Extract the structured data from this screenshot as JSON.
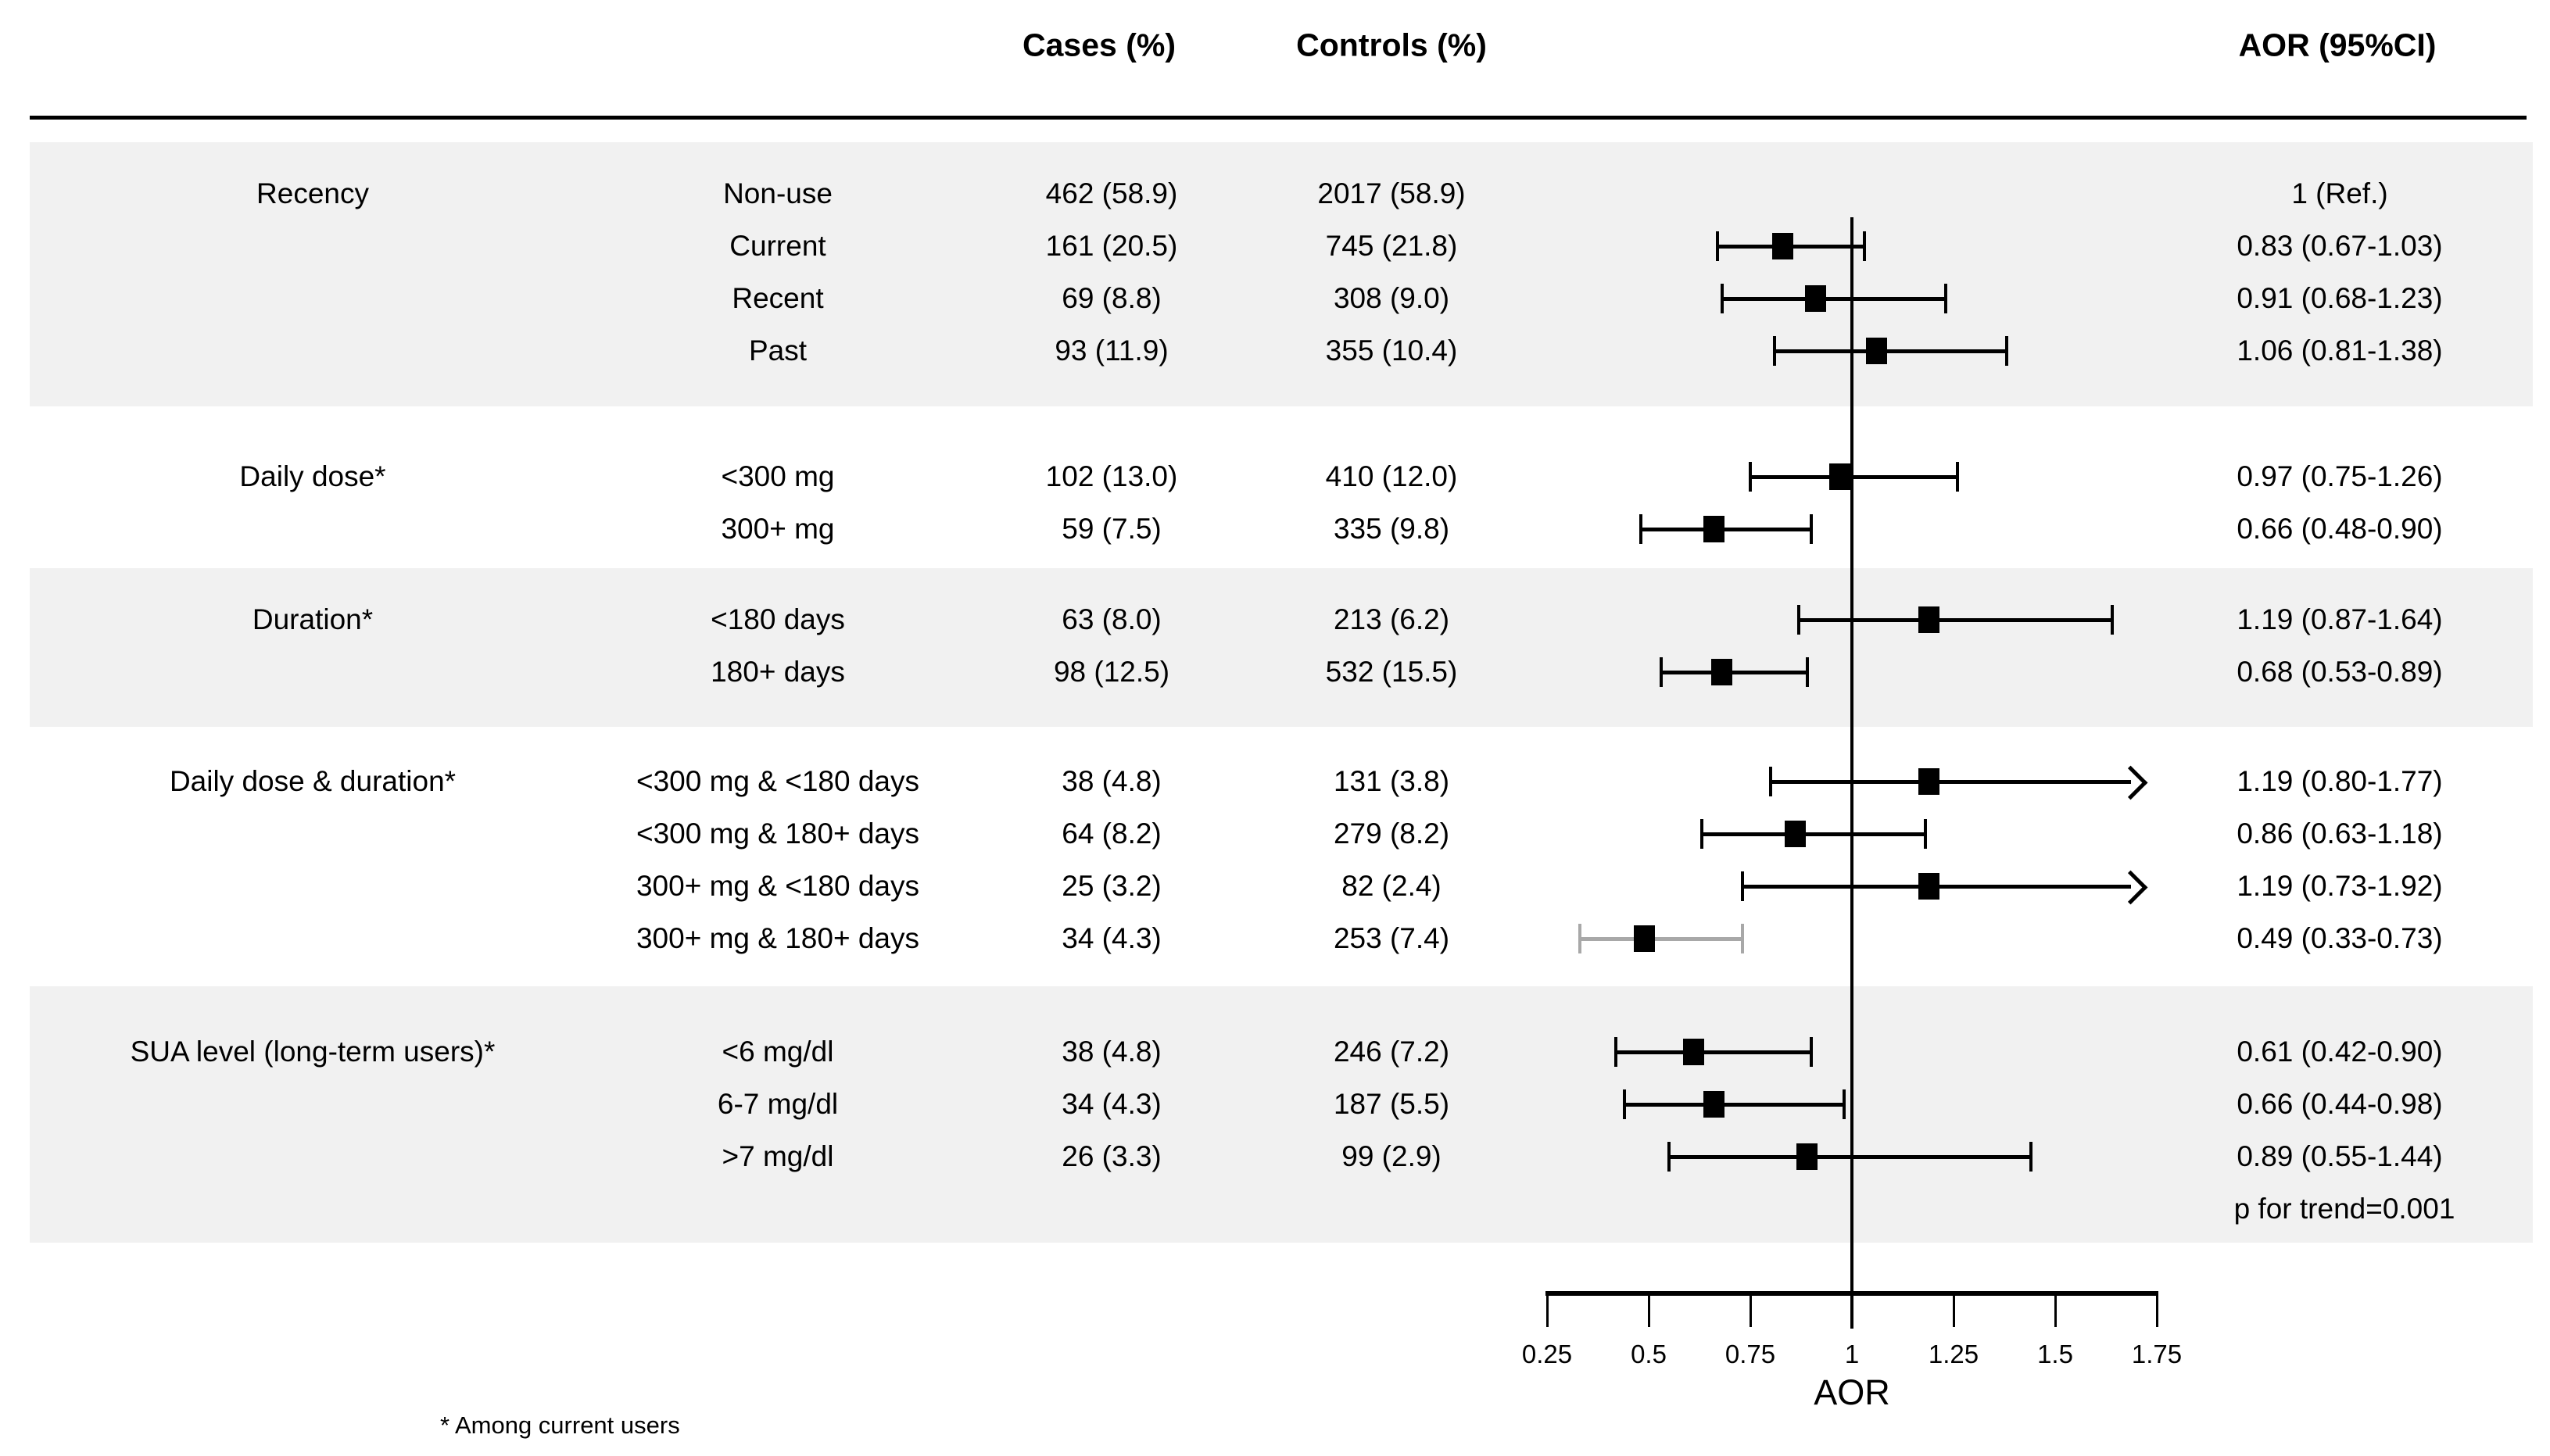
{
  "header": {
    "cases_label": "Cases (%)",
    "controls_label": "Controls (%)",
    "aor_label": "AOR (95%CI)"
  },
  "axis": {
    "label": "AOR"
  },
  "footnote": "* Among current users",
  "colors": {
    "band": "#f1f1f1",
    "ink": "#000000",
    "gray_ci": "#a8a8a8"
  },
  "chart_data": {
    "type": "forest",
    "xlabel": "AOR",
    "xlim": [
      0.25,
      1.75
    ],
    "xticks": [
      "0.25",
      "0.5",
      "0.75",
      "1",
      "1.25",
      "1.5",
      "1.75"
    ],
    "xtick_values": [
      0.25,
      0.5,
      0.75,
      1.0,
      1.25,
      1.5,
      1.75
    ],
    "ref_line": 1.0,
    "columns": [
      "Group",
      "Category",
      "Cases (%)",
      "Controls (%)",
      "AOR (95%CI)"
    ],
    "p_for_trend": "p for trend=0.001",
    "groups": [
      {
        "label": "Recency",
        "shaded": true,
        "rows": [
          {
            "category": "Non-use",
            "cases": "462 (58.9)",
            "controls": "2017 (58.9)",
            "aor_text": "1 (Ref.)",
            "aor": null,
            "lo": null,
            "hi": null
          },
          {
            "category": "Current",
            "cases": "161 (20.5)",
            "controls": "745 (21.8)",
            "aor_text": "0.83 (0.67-1.03)",
            "aor": 0.83,
            "lo": 0.67,
            "hi": 1.03
          },
          {
            "category": "Recent",
            "cases": "69 (8.8)",
            "controls": "308 (9.0)",
            "aor_text": "0.91 (0.68-1.23)",
            "aor": 0.91,
            "lo": 0.68,
            "hi": 1.23
          },
          {
            "category": "Past",
            "cases": "93 (11.9)",
            "controls": "355 (10.4)",
            "aor_text": "1.06 (0.81-1.38)",
            "aor": 1.06,
            "lo": 0.81,
            "hi": 1.38
          }
        ]
      },
      {
        "label": "Daily dose*",
        "shaded": false,
        "rows": [
          {
            "category": "<300 mg",
            "cases": "102 (13.0)",
            "controls": "410 (12.0)",
            "aor_text": "0.97 (0.75-1.26)",
            "aor": 0.97,
            "lo": 0.75,
            "hi": 1.26
          },
          {
            "category": "300+ mg",
            "cases": "59 (7.5)",
            "controls": "335 (9.8)",
            "aor_text": "0.66 (0.48-0.90)",
            "aor": 0.66,
            "lo": 0.48,
            "hi": 0.9
          }
        ]
      },
      {
        "label": "Duration*",
        "shaded": true,
        "rows": [
          {
            "category": "<180 days",
            "cases": "63 (8.0)",
            "controls": "213 (6.2)",
            "aor_text": "1.19 (0.87-1.64)",
            "aor": 1.19,
            "lo": 0.87,
            "hi": 1.64
          },
          {
            "category": "180+ days",
            "cases": "98 (12.5)",
            "controls": "532 (15.5)",
            "aor_text": "0.68 (0.53-0.89)",
            "aor": 0.68,
            "lo": 0.53,
            "hi": 0.89
          }
        ]
      },
      {
        "label": "Daily dose & duration*",
        "shaded": false,
        "rows": [
          {
            "category": "<300 mg & <180 days",
            "cases": "38 (4.8)",
            "controls": "131 (3.8)",
            "aor_text": "1.19 (0.80-1.77)",
            "aor": 1.19,
            "lo": 0.8,
            "hi": 1.77,
            "arrow_right": true
          },
          {
            "category": "<300 mg & 180+ days",
            "cases": "64 (8.2)",
            "controls": "279 (8.2)",
            "aor_text": "0.86 (0.63-1.18)",
            "aor": 0.86,
            "lo": 0.63,
            "hi": 1.18
          },
          {
            "category": "300+ mg & <180 days",
            "cases": "25 (3.2)",
            "controls": "82 (2.4)",
            "aor_text": "1.19 (0.73-1.92)",
            "aor": 1.19,
            "lo": 0.73,
            "hi": 1.92,
            "arrow_right": true
          },
          {
            "category": "300+ mg & 180+ days",
            "cases": "34 (4.3)",
            "controls": "253 (7.4)",
            "aor_text": "0.49 (0.33-0.73)",
            "aor": 0.49,
            "lo": 0.33,
            "hi": 0.73,
            "gray_line": true
          }
        ]
      },
      {
        "label": "SUA level (long-term users)*",
        "shaded": true,
        "rows": [
          {
            "category": "<6 mg/dl",
            "cases": "38 (4.8)",
            "controls": "246 (7.2)",
            "aor_text": "0.61 (0.42-0.90)",
            "aor": 0.61,
            "lo": 0.42,
            "hi": 0.9
          },
          {
            "category": "6-7 mg/dl",
            "cases": "34 (4.3)",
            "controls": "187 (5.5)",
            "aor_text": "0.66 (0.44-0.98)",
            "aor": 0.66,
            "lo": 0.44,
            "hi": 0.98
          },
          {
            "category": ">7 mg/dl",
            "cases": "26 (3.3)",
            "controls": "99 (2.9)",
            "aor_text": "0.89 (0.55-1.44)",
            "aor": 0.89,
            "lo": 0.55,
            "hi": 1.44
          }
        ]
      }
    ]
  }
}
